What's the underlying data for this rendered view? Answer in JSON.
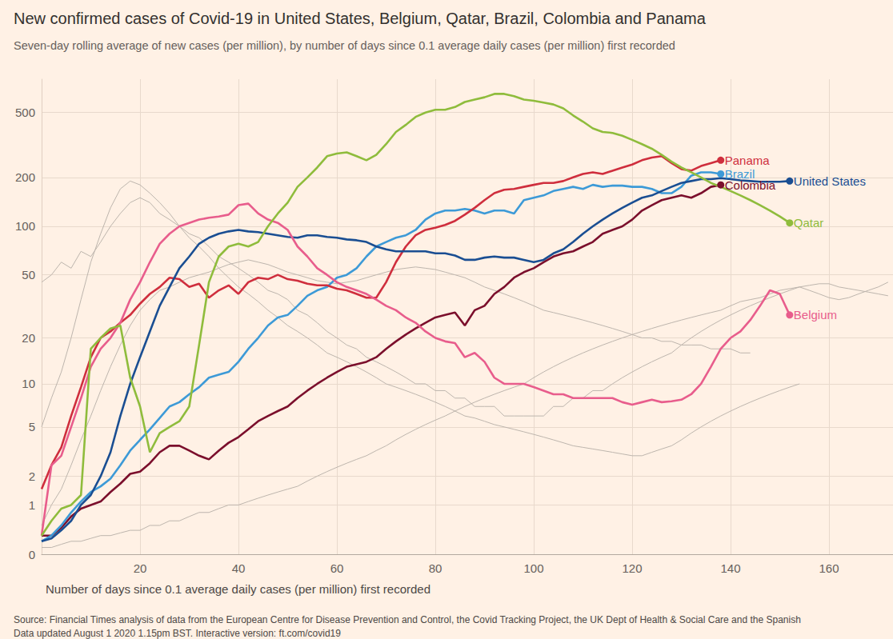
{
  "chart_data": {
    "type": "line",
    "title": "New confirmed cases of Covid-19 in United States, Belgium, Qatar, Brazil, Colombia and Panama",
    "subtitle": "Seven-day rolling average of new cases (per million), by number of days since 0.1 average daily cases (per million) first recorded",
    "xlabel": "Number of days since 0.1 average daily cases (per million) first recorded",
    "notes": [
      "Source: Financial Times analysis of data from the European Centre for Disease Prevention and Control, the Covid Tracking Project, the UK Dept of Health & Social Care and the Spanish",
      "Data updated August 1 2020 1.15pm BST. Interactive version: ft.com/covid19"
    ],
    "log": "y",
    "grid": true,
    "xlim": [
      0,
      173
    ],
    "xticks": [
      20,
      40,
      60,
      80,
      100,
      120,
      140,
      160
    ],
    "ylim": [
      0,
      800
    ],
    "yticks": [
      0,
      1,
      2,
      5,
      10,
      20,
      50,
      100,
      200,
      500
    ],
    "x": [
      0,
      2,
      4,
      6,
      8,
      10,
      12,
      14,
      16,
      18,
      20,
      22,
      24,
      26,
      28,
      30,
      32,
      34,
      36,
      38,
      40,
      42,
      44,
      46,
      48,
      50,
      52,
      54,
      56,
      58,
      60,
      62,
      64,
      66,
      68,
      70,
      72,
      74,
      76,
      78,
      80,
      82,
      84,
      86,
      88,
      90,
      92,
      94,
      96,
      98,
      100,
      102,
      104,
      106,
      108,
      110,
      112,
      114,
      116,
      118,
      120,
      122,
      124,
      126,
      128,
      130,
      132,
      134,
      136,
      138,
      140,
      142,
      144,
      146,
      148,
      150,
      152,
      154,
      156,
      158,
      160,
      162,
      164,
      166,
      168,
      170,
      172
    ],
    "series": [
      {
        "color": "#bdb5ad",
        "values": [
          45,
          50,
          60,
          55,
          70,
          65,
          80,
          100,
          120,
          140,
          150,
          140,
          120,
          110,
          100,
          90,
          85,
          75,
          65,
          60,
          55,
          50,
          45,
          40,
          38,
          35,
          30,
          28,
          25,
          22,
          20,
          18,
          17,
          15,
          14,
          13,
          12,
          11,
          10,
          10,
          9,
          9,
          8,
          8,
          7,
          7,
          7,
          6,
          6,
          6,
          6,
          6,
          7,
          7,
          8,
          8,
          9,
          9,
          10,
          11,
          12,
          13,
          14,
          15,
          16,
          18,
          20,
          22,
          24,
          26,
          28,
          30,
          32,
          34,
          36,
          38,
          40,
          42,
          40,
          38,
          36,
          35,
          36,
          38,
          40,
          42,
          45
        ]
      },
      {
        "color": "#bdb5ad",
        "values": [
          0.1,
          0.1,
          0.15,
          0.2,
          0.2,
          0.25,
          0.3,
          0.3,
          0.35,
          0.4,
          0.4,
          0.5,
          0.5,
          0.6,
          0.6,
          0.7,
          0.8,
          0.8,
          0.9,
          1,
          1,
          1.1,
          1.2,
          1.3,
          1.4,
          1.5,
          1.6,
          1.8,
          2,
          2.2,
          2.4,
          2.6,
          2.8,
          3,
          3.3,
          3.6,
          4,
          4.4,
          4.8,
          5.2,
          5.6,
          6,
          6.5,
          7,
          7.5,
          8,
          8.5,
          9,
          9.5,
          10,
          11,
          12,
          13,
          14,
          15,
          16,
          17,
          18,
          19,
          20,
          21,
          22,
          23,
          24,
          25,
          26,
          27,
          28,
          29,
          30,
          32,
          34,
          35,
          36,
          38,
          40,
          41,
          42,
          43,
          44,
          44,
          42,
          41,
          40,
          39,
          38,
          37
        ]
      },
      {
        "color": "#bdb5ad",
        "values": [
          0.5,
          1,
          1.5,
          2.5,
          4,
          6,
          9,
          13,
          18,
          24,
          30,
          35,
          40,
          42,
          45,
          48,
          50,
          52,
          55,
          58,
          60,
          62,
          60,
          58,
          55,
          52,
          50,
          48,
          46,
          45,
          44,
          45,
          46,
          48,
          50,
          52,
          54,
          55,
          56,
          55,
          54,
          52,
          50,
          48,
          45,
          42,
          40,
          38,
          36,
          34,
          32,
          30,
          29,
          28,
          27,
          26,
          25,
          24,
          23,
          22,
          21,
          20,
          20,
          19,
          19,
          18,
          18,
          18,
          17,
          17,
          17,
          16,
          16,
          null,
          null,
          null,
          null,
          null,
          null,
          null,
          null,
          null,
          null,
          null,
          null,
          null,
          null
        ]
      },
      {
        "color": "#bdb5ad",
        "values": [
          5,
          8,
          12,
          20,
          35,
          60,
          90,
          130,
          170,
          190,
          180,
          160,
          140,
          120,
          100,
          85,
          75,
          65,
          55,
          48,
          42,
          38,
          34,
          30,
          27,
          24,
          22,
          20,
          18,
          16,
          15,
          14,
          13,
          12,
          11,
          10,
          9.5,
          9,
          8.5,
          8,
          7.5,
          7,
          6.5,
          6,
          5.8,
          5.5,
          5.2,
          5,
          4.8,
          4.6,
          4.4,
          4.2,
          4,
          3.8,
          3.6,
          3.5,
          3.4,
          3.3,
          3.2,
          3.1,
          3,
          3,
          3.2,
          3.4,
          3.6,
          4,
          4.5,
          5,
          5.5,
          6,
          6.5,
          7,
          7.5,
          8,
          8.5,
          9,
          9.5,
          10,
          null,
          null,
          null,
          null,
          null,
          null,
          null,
          null,
          null
        ]
      },
      {
        "name": "Colombia",
        "color": "#7b0f2c",
        "values": [
          0.3,
          0.3,
          0.45,
          0.7,
          0.9,
          1,
          1.1,
          1.4,
          1.7,
          2.1,
          2.2,
          2.6,
          3.2,
          3.6,
          3.6,
          3.3,
          3,
          2.8,
          3.3,
          3.8,
          4.2,
          4.8,
          5.5,
          6,
          6.5,
          7,
          8,
          9,
          10,
          11,
          12,
          13,
          13.5,
          14,
          15,
          17,
          19,
          21,
          23,
          25,
          27,
          28,
          29,
          24,
          30,
          32,
          38,
          42,
          48,
          52,
          55,
          60,
          65,
          68,
          70,
          75,
          80,
          90,
          95,
          100,
          110,
          125,
          135,
          145,
          150,
          155,
          150,
          160,
          175,
          180,
          null,
          null,
          null,
          null,
          null,
          null,
          null,
          null,
          null,
          null,
          null,
          null,
          null,
          null,
          null,
          null,
          null
        ]
      },
      {
        "name": "Brazil",
        "color": "#3d9ad7",
        "values": [
          0.2,
          0.3,
          0.5,
          0.8,
          1.1,
          1.4,
          1.6,
          1.9,
          2.5,
          3.3,
          4,
          4.8,
          5.8,
          7,
          7.5,
          8.5,
          9.5,
          11,
          11.5,
          12,
          14,
          17,
          20,
          24,
          27,
          28,
          32,
          37,
          40,
          42,
          48,
          50,
          55,
          65,
          75,
          80,
          85,
          88,
          95,
          110,
          120,
          125,
          125,
          128,
          125,
          120,
          125,
          125,
          120,
          145,
          150,
          155,
          165,
          170,
          175,
          170,
          180,
          175,
          178,
          178,
          175,
          175,
          170,
          160,
          160,
          175,
          205,
          215,
          215,
          210,
          null,
          null,
          null,
          null,
          null,
          null,
          null,
          null,
          null,
          null,
          null,
          null,
          null,
          null,
          null,
          null,
          null
        ]
      },
      {
        "name": "Panama",
        "color": "#cf2e3d",
        "values": [
          1.5,
          2.5,
          3.5,
          6,
          9.5,
          15,
          20,
          22,
          25,
          28,
          33,
          38,
          42,
          48,
          47,
          42,
          44,
          36,
          40,
          43,
          38,
          45,
          48,
          47,
          50,
          47,
          46,
          44,
          43,
          43,
          41,
          40,
          38,
          36,
          36,
          45,
          60,
          75,
          88,
          95,
          98,
          102,
          108,
          118,
          130,
          145,
          160,
          168,
          170,
          175,
          180,
          185,
          185,
          190,
          200,
          210,
          215,
          210,
          220,
          230,
          240,
          255,
          265,
          270,
          245,
          225,
          220,
          235,
          245,
          255,
          null,
          null,
          null,
          null,
          null,
          null,
          null,
          null,
          null,
          null,
          null,
          null,
          null,
          null,
          null,
          null,
          null
        ]
      },
      {
        "name": "United States",
        "color": "#1a4e92",
        "values": [
          0.2,
          0.25,
          0.4,
          0.6,
          1,
          1.3,
          2,
          3.2,
          6,
          10,
          15,
          22,
          32,
          42,
          55,
          65,
          78,
          85,
          90,
          93,
          95,
          93,
          92,
          90,
          88,
          86,
          85,
          88,
          88,
          86,
          85,
          83,
          82,
          80,
          75,
          72,
          70,
          70,
          70,
          70,
          68,
          68,
          66,
          62,
          62,
          64,
          65,
          64,
          64,
          62,
          60,
          62,
          68,
          72,
          80,
          90,
          100,
          110,
          120,
          130,
          140,
          150,
          155,
          165,
          175,
          185,
          190,
          195,
          195,
          198,
          195,
          192,
          190,
          188,
          188,
          188,
          190,
          null,
          null,
          null,
          null,
          null,
          null,
          null,
          null,
          null,
          null
        ]
      },
      {
        "name": "Belgium",
        "color": "#e85d8c",
        "values": [
          0.3,
          2.5,
          3,
          5,
          8,
          13,
          17,
          20,
          25,
          35,
          45,
          60,
          78,
          90,
          100,
          105,
          110,
          113,
          115,
          118,
          135,
          138,
          120,
          110,
          105,
          95,
          75,
          65,
          55,
          50,
          45,
          42,
          40,
          38,
          35,
          32,
          30,
          27,
          25,
          22,
          20,
          19,
          18.5,
          15,
          16,
          14,
          11,
          10,
          10,
          10,
          9.5,
          9,
          8.5,
          8.5,
          8,
          8,
          8,
          8,
          8,
          7.5,
          7.2,
          7.5,
          7.8,
          7.5,
          7.6,
          7.8,
          8.5,
          10,
          13,
          17,
          20,
          22,
          26,
          32,
          40,
          38,
          28,
          null,
          null,
          null,
          null,
          null,
          null,
          null,
          null,
          null,
          null
        ]
      },
      {
        "name": "Qatar",
        "color": "#8fbc3c",
        "values": [
          0.3,
          0.6,
          0.9,
          1,
          1.3,
          17,
          20,
          23,
          24,
          11,
          7,
          3.2,
          4.5,
          5,
          5.5,
          7,
          18,
          45,
          65,
          75,
          78,
          75,
          80,
          100,
          120,
          140,
          175,
          200,
          230,
          270,
          280,
          285,
          270,
          255,
          275,
          320,
          380,
          420,
          470,
          500,
          520,
          520,
          540,
          580,
          600,
          620,
          650,
          650,
          630,
          600,
          590,
          575,
          560,
          530,
          480,
          440,
          400,
          380,
          375,
          360,
          340,
          320,
          300,
          275,
          250,
          230,
          215,
          200,
          185,
          175,
          165,
          155,
          145,
          135,
          125,
          115,
          105,
          null,
          null,
          null,
          null,
          null,
          null,
          null,
          null,
          null,
          null
        ]
      }
    ]
  }
}
